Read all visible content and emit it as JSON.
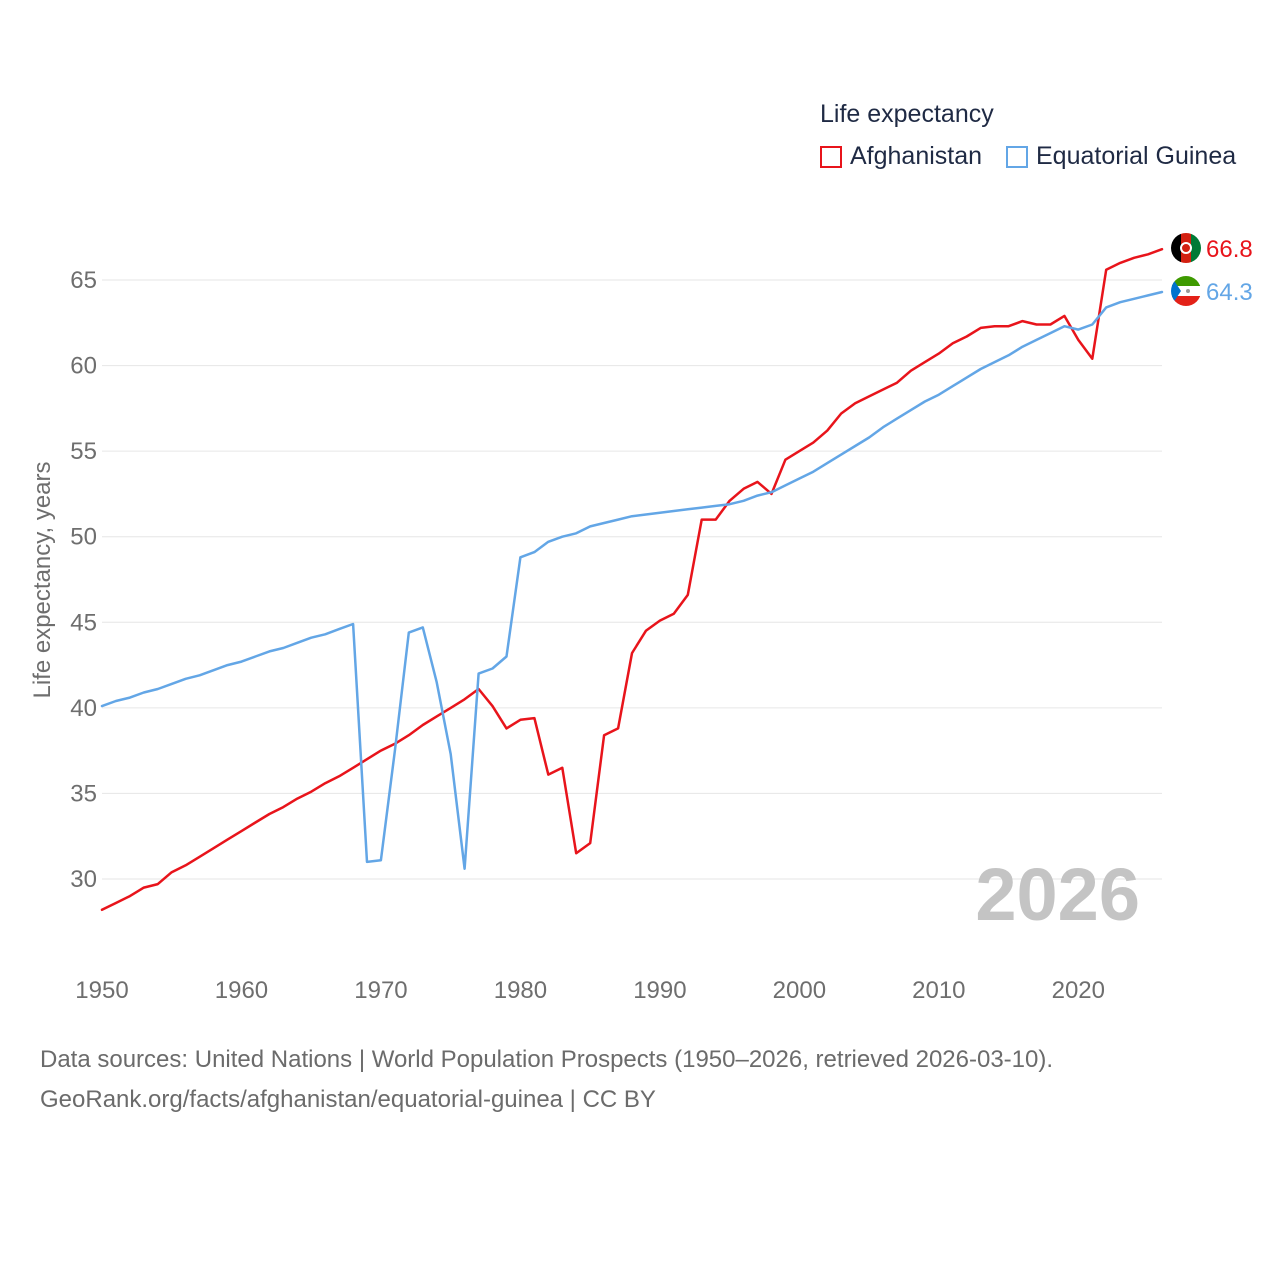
{
  "colors": {
    "afghanistan": "#e8141b",
    "equatorial_guinea": "#63a6e6",
    "grid": "#e6e6e6",
    "axis_text": "#6e6e6e",
    "year_watermark": "#c4c4c4"
  },
  "legend": {
    "title": "Life expectancy",
    "items": [
      "Afghanistan",
      "Equatorial Guinea"
    ]
  },
  "footer": {
    "line1": "Data sources: United Nations | World Population Prospects (1950–2026, retrieved 2026-03-10).",
    "line2": "GeoRank.org/facts/afghanistan/equatorial-guinea | CC BY"
  },
  "chart_data": {
    "type": "line",
    "title": "Life expectancy",
    "xlabel": "",
    "ylabel": "Life expectancy, years",
    "xlim": [
      1950,
      2026
    ],
    "ylim": [
      26,
      69
    ],
    "x_ticks": [
      1950,
      1960,
      1970,
      1980,
      1990,
      2000,
      2010,
      2020
    ],
    "y_ticks": [
      30,
      35,
      40,
      45,
      50,
      55,
      60,
      65
    ],
    "grid": true,
    "legend_position": "top-right",
    "year_label": "2026",
    "x": [
      1950,
      1951,
      1952,
      1953,
      1954,
      1955,
      1956,
      1957,
      1958,
      1959,
      1960,
      1961,
      1962,
      1963,
      1964,
      1965,
      1966,
      1967,
      1968,
      1969,
      1970,
      1971,
      1972,
      1973,
      1974,
      1975,
      1976,
      1977,
      1978,
      1979,
      1980,
      1981,
      1982,
      1983,
      1984,
      1985,
      1986,
      1987,
      1988,
      1989,
      1990,
      1991,
      1992,
      1993,
      1994,
      1995,
      1996,
      1997,
      1998,
      1999,
      2000,
      2001,
      2002,
      2003,
      2004,
      2005,
      2006,
      2007,
      2008,
      2009,
      2010,
      2011,
      2012,
      2013,
      2014,
      2015,
      2016,
      2017,
      2018,
      2019,
      2020,
      2021,
      2022,
      2023,
      2024,
      2025,
      2026
    ],
    "series": [
      {
        "name": "Afghanistan",
        "end_label": "66.8",
        "values": [
          28.2,
          28.6,
          29.0,
          29.5,
          29.7,
          30.4,
          30.8,
          31.3,
          31.8,
          32.3,
          32.8,
          33.3,
          33.8,
          34.2,
          34.7,
          35.1,
          35.6,
          36.0,
          36.5,
          37.0,
          37.5,
          37.9,
          38.4,
          39.0,
          39.5,
          40.0,
          40.5,
          41.1,
          40.1,
          38.8,
          39.3,
          39.4,
          36.1,
          36.5,
          31.5,
          32.1,
          38.4,
          38.8,
          43.2,
          44.5,
          45.1,
          45.5,
          46.6,
          51.0,
          51.0,
          52.1,
          52.8,
          53.2,
          52.5,
          54.5,
          55.0,
          55.5,
          56.2,
          57.2,
          57.8,
          58.2,
          58.6,
          59.0,
          59.7,
          60.2,
          60.7,
          61.3,
          61.7,
          62.2,
          62.3,
          62.3,
          62.6,
          62.4,
          62.4,
          62.9,
          61.5,
          60.4,
          65.6,
          66.0,
          66.3,
          66.5,
          66.8
        ]
      },
      {
        "name": "Equatorial Guinea",
        "end_label": "64.3",
        "values": [
          40.1,
          40.4,
          40.6,
          40.9,
          41.1,
          41.4,
          41.7,
          41.9,
          42.2,
          42.5,
          42.7,
          43.0,
          43.3,
          43.5,
          43.8,
          44.1,
          44.3,
          44.6,
          44.9,
          31.0,
          31.1,
          37.5,
          44.4,
          44.7,
          41.5,
          37.3,
          30.6,
          42.0,
          42.3,
          43.0,
          48.8,
          49.1,
          49.7,
          50.0,
          50.2,
          50.6,
          50.8,
          51.0,
          51.2,
          51.3,
          51.4,
          51.5,
          51.6,
          51.7,
          51.8,
          51.9,
          52.1,
          52.4,
          52.6,
          53.0,
          53.4,
          53.8,
          54.3,
          54.8,
          55.3,
          55.8,
          56.4,
          56.9,
          57.4,
          57.9,
          58.3,
          58.8,
          59.3,
          59.8,
          60.2,
          60.6,
          61.1,
          61.5,
          61.9,
          62.3,
          62.1,
          62.4,
          63.4,
          63.7,
          63.9,
          64.1,
          64.3
        ]
      }
    ]
  }
}
